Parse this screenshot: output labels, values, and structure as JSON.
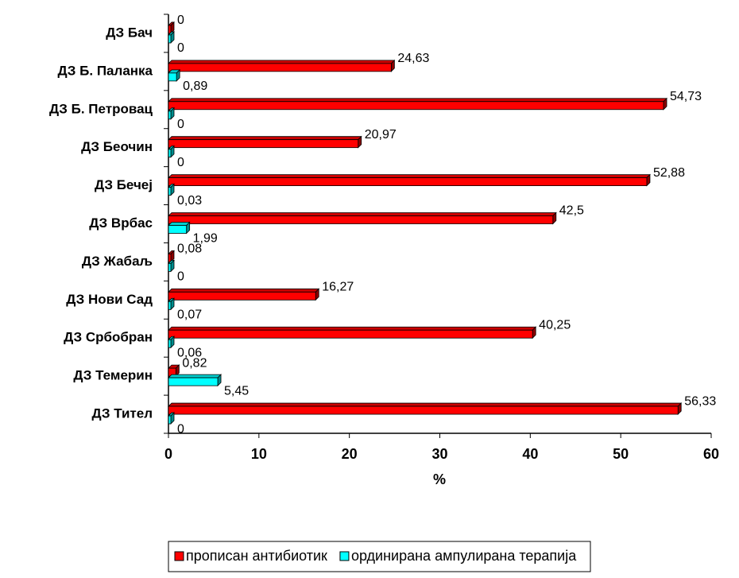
{
  "chart_data": {
    "type": "bar",
    "orientation": "horizontal",
    "categories": [
      "ДЗ Бач",
      "ДЗ Б. Паланка",
      "ДЗ Б. Петровац",
      "ДЗ Беочин",
      "ДЗ Бечеј",
      "ДЗ Врбас",
      "ДЗ Жабаљ",
      "ДЗ Нови Сад",
      "ДЗ Србобран",
      "ДЗ Темерин",
      "ДЗ Тител"
    ],
    "series": [
      {
        "name": "прописан антибиотик",
        "color": "#ff0000",
        "values": [
          0,
          24.63,
          54.73,
          20.97,
          52.88,
          42.5,
          0.08,
          16.27,
          40.25,
          0.82,
          56.33
        ],
        "value_labels": [
          "0",
          "24,63",
          "54,73",
          "20,97",
          "52,88",
          "42,5",
          "0,08",
          "16,27",
          "40,25",
          "0,82",
          "56,33"
        ]
      },
      {
        "name": "ординирана ампулирана терапија",
        "color": "#00ffff",
        "values": [
          0,
          0.89,
          0,
          0,
          0.03,
          1.99,
          0,
          0.07,
          0.06,
          5.45,
          0
        ],
        "value_labels": [
          "0",
          "0,89",
          "0",
          "0",
          "0,03",
          "1,99",
          "0",
          "0,07",
          "0,06",
          "5,45",
          "0"
        ]
      }
    ],
    "xlabel": "%",
    "xlim": [
      0,
      60
    ],
    "xticks": [
      0,
      10,
      20,
      30,
      40,
      50,
      60
    ],
    "legend": "bottom"
  }
}
